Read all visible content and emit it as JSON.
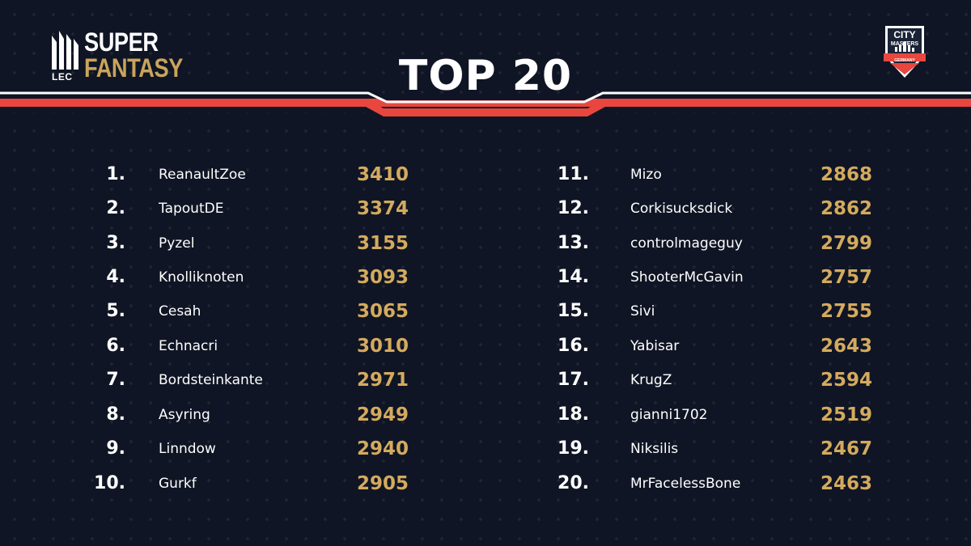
{
  "brand": {
    "league": "LEC",
    "name_line1": "SUPER",
    "name_line2": "FANTASY",
    "colors": {
      "gold": "#c9a45b",
      "white": "#ffffff"
    }
  },
  "title": "TOP 20",
  "badge": {
    "line1": "CITY",
    "line2": "MASTERS",
    "line3": "GERMANY",
    "icon": "city-masters-shield-icon"
  },
  "colors": {
    "background": "#0f1524",
    "accent_red": "#e8463e",
    "score_gold": "#d4aa5e",
    "text": "#ffffff"
  },
  "leaderboard": {
    "left": [
      {
        "rank": "1.",
        "player": "ReanaultZoe",
        "score": "3410"
      },
      {
        "rank": "2.",
        "player": "TapoutDE",
        "score": "3374"
      },
      {
        "rank": "3.",
        "player": "Pyzel",
        "score": "3155"
      },
      {
        "rank": "4.",
        "player": "Knolliknoten",
        "score": "3093"
      },
      {
        "rank": "5.",
        "player": "Cesah",
        "score": "3065"
      },
      {
        "rank": "6.",
        "player": "Echnacri",
        "score": "3010"
      },
      {
        "rank": "7.",
        "player": "Bordsteinkante",
        "score": "2971"
      },
      {
        "rank": "8.",
        "player": "Asyring",
        "score": "2949"
      },
      {
        "rank": "9.",
        "player": "Linndow",
        "score": "2940"
      },
      {
        "rank": "10.",
        "player": "Gurkf",
        "score": "2905"
      }
    ],
    "right": [
      {
        "rank": "11.",
        "player": "Mizo",
        "score": "2868"
      },
      {
        "rank": "12.",
        "player": "Corkisucksdick",
        "score": "2862"
      },
      {
        "rank": "13.",
        "player": "controlmageguy",
        "score": "2799"
      },
      {
        "rank": "14.",
        "player": "ShooterMcGavin",
        "score": "2757"
      },
      {
        "rank": "15.",
        "player": "Sivi",
        "score": "2755"
      },
      {
        "rank": "16.",
        "player": "Yabisar",
        "score": "2643"
      },
      {
        "rank": "17.",
        "player": "KrugZ",
        "score": "2594"
      },
      {
        "rank": "18.",
        "player": "gianni1702",
        "score": "2519"
      },
      {
        "rank": "19.",
        "player": "Niksilis",
        "score": "2467"
      },
      {
        "rank": "20.",
        "player": "MrFacelessBone",
        "score": "2463"
      }
    ]
  }
}
